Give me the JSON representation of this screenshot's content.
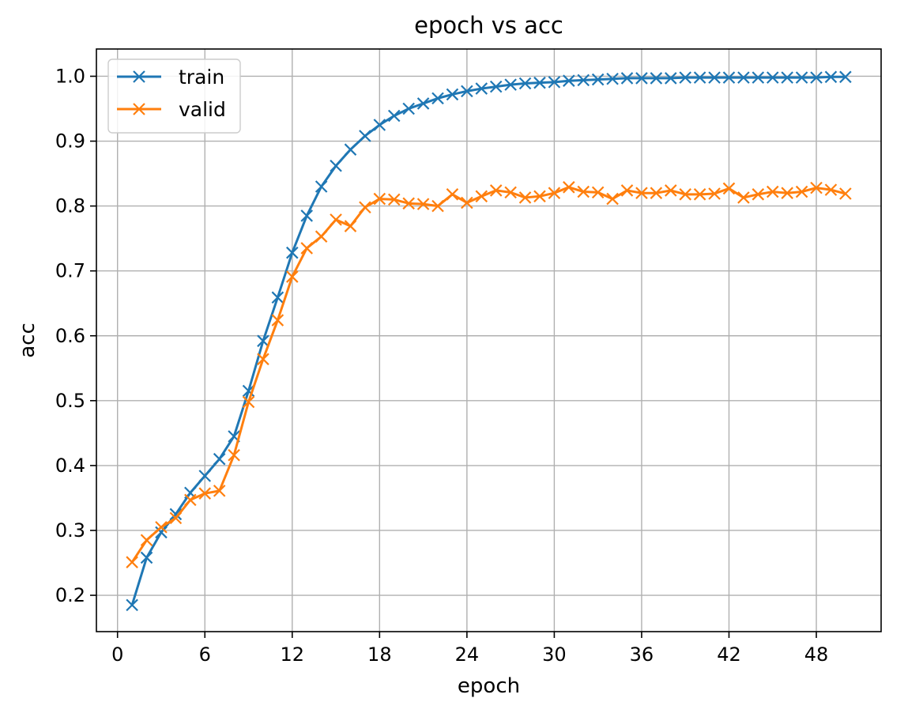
{
  "chart_data": {
    "type": "line",
    "title": "epoch vs acc",
    "xlabel": "epoch",
    "ylabel": "acc",
    "xlim": [
      -1.45,
      52.45
    ],
    "ylim": [
      0.144,
      1.042
    ],
    "xticks": [
      0,
      6,
      12,
      18,
      24,
      30,
      36,
      42,
      48
    ],
    "xtick_labels": [
      "0",
      "6",
      "12",
      "18",
      "24",
      "30",
      "36",
      "42",
      "48"
    ],
    "yticks": [
      0.2,
      0.3,
      0.4,
      0.5,
      0.6,
      0.7,
      0.8,
      0.9,
      1.0
    ],
    "ytick_labels": [
      "0.2",
      "0.3",
      "0.4",
      "0.5",
      "0.6",
      "0.7",
      "0.8",
      "0.9",
      "1.0"
    ],
    "grid": true,
    "legend": "upper-left",
    "marker": "x",
    "x": [
      1,
      2,
      3,
      4,
      5,
      6,
      7,
      8,
      9,
      10,
      11,
      12,
      13,
      14,
      15,
      16,
      17,
      18,
      19,
      20,
      21,
      22,
      23,
      24,
      25,
      26,
      27,
      28,
      29,
      30,
      31,
      32,
      33,
      34,
      35,
      36,
      37,
      38,
      39,
      40,
      41,
      42,
      43,
      44,
      45,
      46,
      47,
      48,
      49,
      50
    ],
    "series": [
      {
        "name": "train",
        "color": "#1f77b4",
        "values": [
          0.185,
          0.258,
          0.297,
          0.325,
          0.358,
          0.384,
          0.41,
          0.445,
          0.515,
          0.592,
          0.659,
          0.728,
          0.785,
          0.83,
          0.862,
          0.887,
          0.908,
          0.925,
          0.939,
          0.95,
          0.958,
          0.966,
          0.972,
          0.977,
          0.981,
          0.984,
          0.987,
          0.989,
          0.99,
          0.991,
          0.993,
          0.994,
          0.995,
          0.996,
          0.997,
          0.997,
          0.997,
          0.997,
          0.998,
          0.998,
          0.998,
          0.998,
          0.998,
          0.998,
          0.998,
          0.998,
          0.998,
          0.998,
          0.999,
          0.999
        ]
      },
      {
        "name": "valid",
        "color": "#ff7f0e",
        "values": [
          0.251,
          0.285,
          0.305,
          0.319,
          0.347,
          0.357,
          0.361,
          0.416,
          0.498,
          0.564,
          0.624,
          0.691,
          0.735,
          0.753,
          0.779,
          0.769,
          0.798,
          0.811,
          0.81,
          0.804,
          0.803,
          0.8,
          0.818,
          0.805,
          0.815,
          0.824,
          0.821,
          0.813,
          0.815,
          0.82,
          0.829,
          0.822,
          0.821,
          0.811,
          0.824,
          0.82,
          0.82,
          0.824,
          0.818,
          0.818,
          0.819,
          0.827,
          0.813,
          0.818,
          0.822,
          0.82,
          0.822,
          0.828,
          0.825,
          0.819
        ]
      }
    ]
  }
}
